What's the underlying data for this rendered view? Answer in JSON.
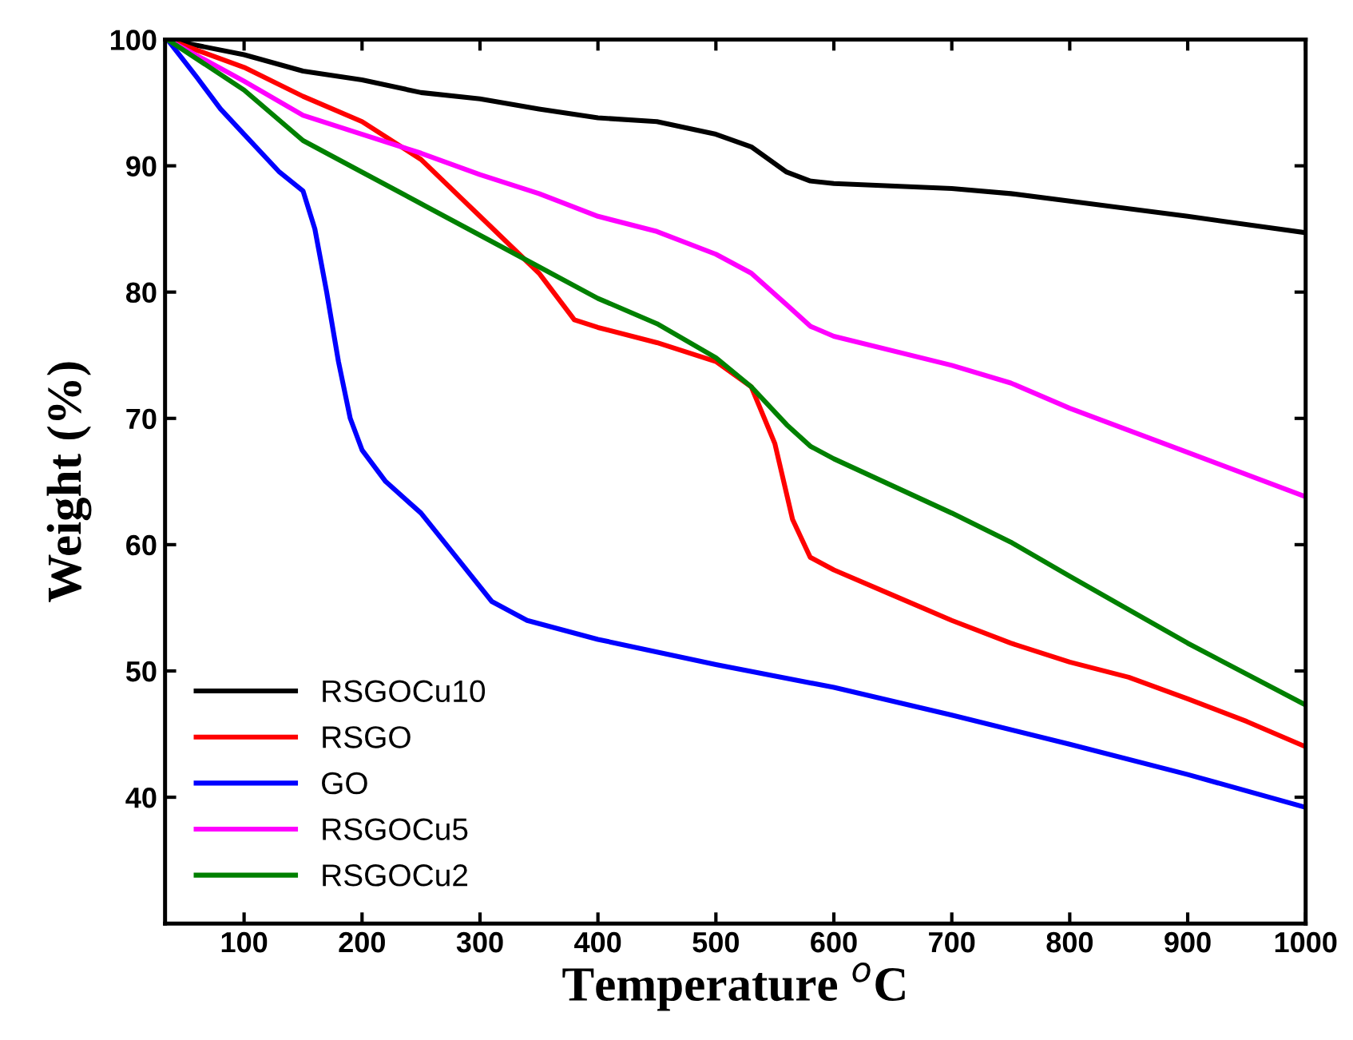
{
  "chart_data": {
    "type": "line",
    "xlabel": "Temperature $^{o}$C",
    "ylabel": "Weight (%)",
    "xlim": [
      33,
      1000
    ],
    "ylim": [
      30,
      100
    ],
    "xticks": [
      100,
      200,
      300,
      400,
      500,
      600,
      700,
      800,
      900,
      1000
    ],
    "yticks": [
      40,
      50,
      60,
      70,
      80,
      90,
      100
    ],
    "legend": "bottom left",
    "grid": false,
    "marker": "none",
    "line_style": "solid",
    "series": [
      {
        "name": "RSGOCu10",
        "color": "#000000",
        "x": [
          35,
          100,
          150,
          200,
          250,
          300,
          350,
          400,
          450,
          500,
          530,
          560,
          580,
          600,
          700,
          750,
          800,
          900,
          1000
        ],
        "values": [
          100,
          98.8,
          97.5,
          96.8,
          95.8,
          95.3,
          94.5,
          93.8,
          93.5,
          92.5,
          91.5,
          89.5,
          88.8,
          88.6,
          88.2,
          87.8,
          87.2,
          86,
          84.7
        ]
      },
      {
        "name": "RSGO",
        "color": "#ff0000",
        "x": [
          35,
          100,
          150,
          200,
          250,
          300,
          350,
          380,
          400,
          450,
          500,
          530,
          550,
          565,
          580,
          600,
          650,
          700,
          750,
          800,
          850,
          900,
          950,
          1000
        ],
        "values": [
          100,
          97.8,
          95.5,
          93.5,
          90.5,
          86,
          81.5,
          77.8,
          77.2,
          76,
          74.5,
          72.5,
          68,
          62,
          59,
          58,
          56,
          54,
          52.2,
          50.7,
          49.5,
          47.8,
          46,
          44
        ]
      },
      {
        "name": "GO",
        "color": "#0000ff",
        "x": [
          35,
          60,
          80,
          100,
          130,
          150,
          160,
          170,
          180,
          190,
          200,
          220,
          250,
          280,
          310,
          340,
          400,
          500,
          600,
          700,
          800,
          900,
          1000
        ],
        "values": [
          100,
          97,
          94.5,
          92.5,
          89.5,
          88,
          85,
          80,
          74.5,
          70,
          67.5,
          65,
          62.5,
          59,
          55.5,
          54,
          52.5,
          50.5,
          48.7,
          46.5,
          44.2,
          41.8,
          39.2
        ]
      },
      {
        "name": "RSGOCu5",
        "color": "#ff00ff",
        "x": [
          35,
          100,
          150,
          200,
          250,
          300,
          350,
          400,
          450,
          500,
          530,
          560,
          580,
          600,
          700,
          750,
          800,
          900,
          1000
        ],
        "values": [
          100,
          96.7,
          94,
          92.5,
          91,
          89.3,
          87.8,
          86,
          84.8,
          83,
          81.5,
          79,
          77.3,
          76.5,
          74.2,
          72.8,
          70.8,
          67.3,
          63.8
        ]
      },
      {
        "name": "RSGOCu2",
        "color": "#008000",
        "x": [
          35,
          100,
          150,
          200,
          250,
          300,
          350,
          400,
          450,
          500,
          530,
          560,
          580,
          600,
          700,
          750,
          800,
          900,
          1000
        ],
        "values": [
          100,
          96,
          92,
          89.5,
          87,
          84.5,
          82,
          79.5,
          77.5,
          74.8,
          72.5,
          69.5,
          67.8,
          66.8,
          62.5,
          60.2,
          57.5,
          52.2,
          47.3
        ]
      }
    ]
  }
}
